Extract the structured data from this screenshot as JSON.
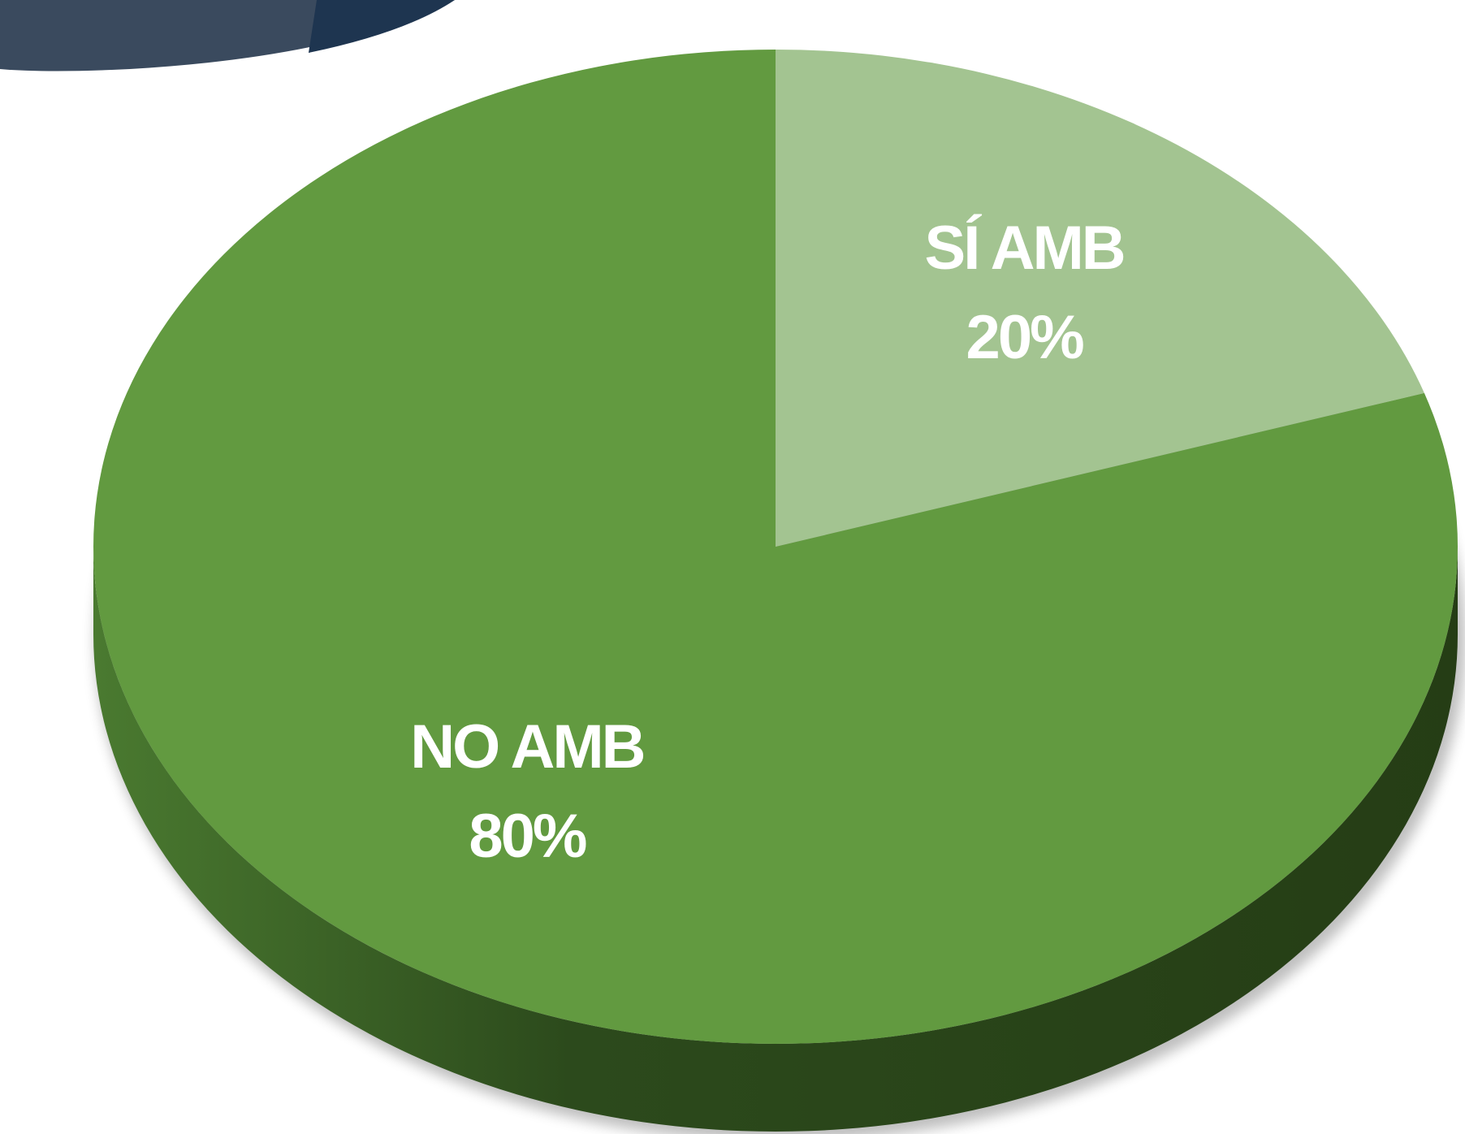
{
  "chart_data": {
    "type": "pie",
    "categories": [
      "SÍ AMB",
      "NO AMB"
    ],
    "values": [
      20,
      80
    ],
    "value_labels": [
      "20%",
      "80%"
    ],
    "colors": [
      "#a3c491",
      "#629a40"
    ]
  }
}
